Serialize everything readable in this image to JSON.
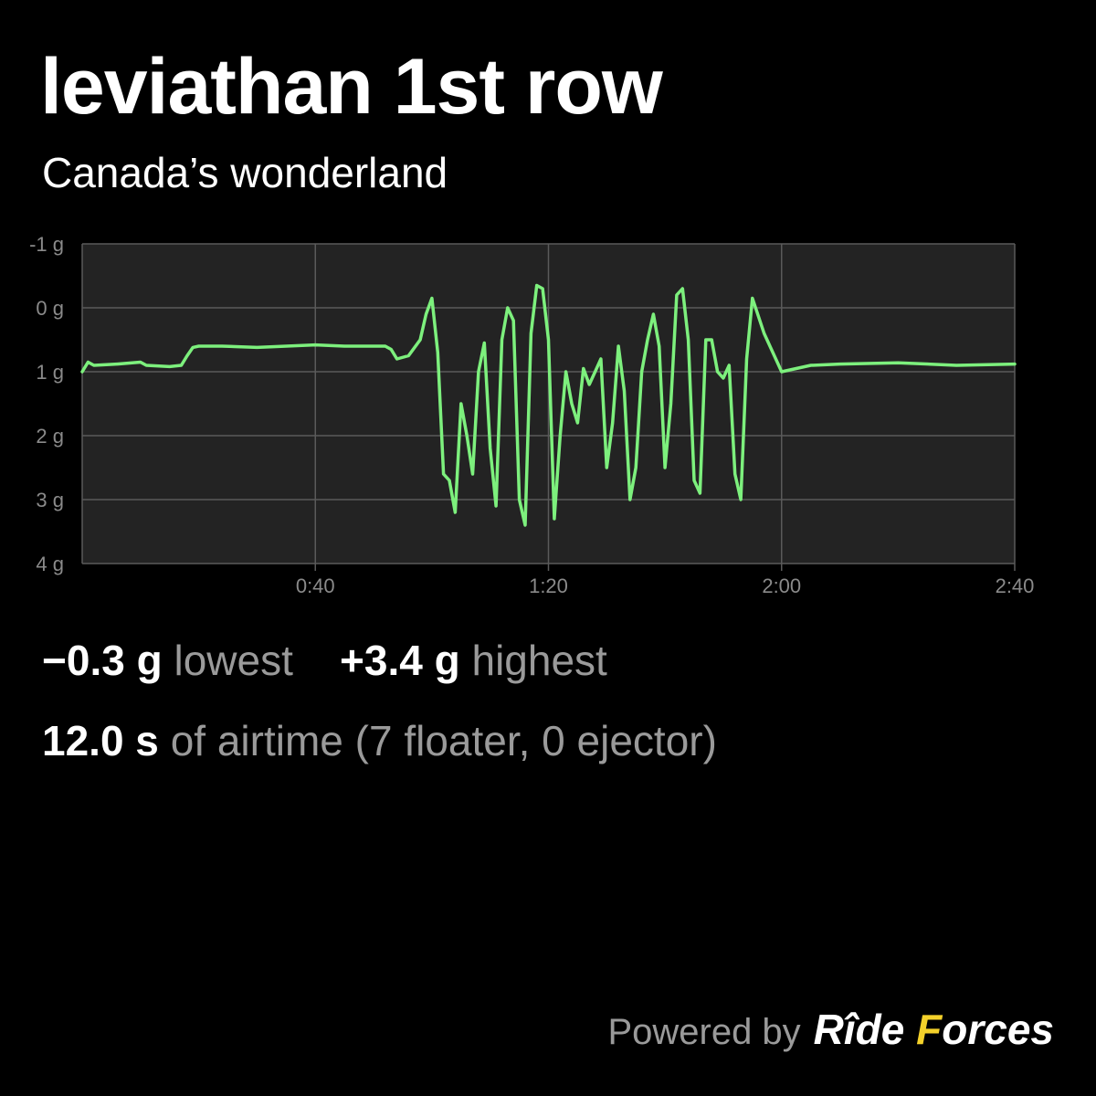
{
  "header": {
    "title": "leviathan 1st row",
    "subtitle": "Canada’s wonderland"
  },
  "stats": {
    "lowest_value": "−0.3 g",
    "lowest_label": "lowest",
    "highest_value": "+3.4 g",
    "highest_label": "highest",
    "airtime_value": "12.0 s",
    "airtime_label": "of airtime (7 floater, 0 ejector)"
  },
  "footer": {
    "powered_label": "Powered by",
    "brand_part1": "Rîde",
    "brand_part2_initial": "F",
    "brand_part2_rest": "orces"
  },
  "colors": {
    "background": "#000000",
    "plot_background": "#232323",
    "grid": "#5a5a5a",
    "line": "#7df07d",
    "muted_text": "#9a9a9a",
    "brand_accent": "#f4d12a"
  },
  "chart_data": {
    "type": "line",
    "title": "",
    "xlabel": "",
    "ylabel": "",
    "x_unit": "seconds",
    "xlim": [
      0,
      160
    ],
    "ylim": [
      -1,
      4
    ],
    "y_inverted": true,
    "grid": true,
    "y_ticks": [
      -1,
      0,
      1,
      2,
      3,
      4
    ],
    "y_tick_labels": [
      "-1 g",
      "0 g",
      "1 g",
      "2 g",
      "3 g",
      "4 g"
    ],
    "x_ticks": [
      40,
      80,
      120,
      160
    ],
    "x_tick_labels": [
      "0:40",
      "1:20",
      "2:00",
      "2:40"
    ],
    "series": [
      {
        "x": [
          0,
          1,
          2,
          6,
          10,
          11,
          15,
          17,
          18,
          19,
          20,
          24,
          30,
          35,
          40,
          45,
          50,
          52,
          53,
          54,
          56,
          58,
          59,
          60,
          61,
          62,
          63,
          64,
          65,
          66,
          67,
          68,
          69,
          70,
          71,
          72,
          73,
          74,
          75,
          76,
          77,
          78,
          79,
          80,
          81,
          82,
          83,
          84,
          85,
          86,
          87,
          88,
          89,
          90,
          91,
          92,
          93,
          94,
          95,
          96,
          97,
          98,
          99,
          100,
          101,
          102,
          103,
          104,
          105,
          106,
          107,
          108,
          109,
          110,
          111,
          112,
          113,
          114,
          115,
          117,
          120,
          125,
          130,
          140,
          150,
          160
        ],
        "y": [
          1.0,
          0.85,
          0.9,
          0.88,
          0.85,
          0.9,
          0.92,
          0.9,
          0.75,
          0.62,
          0.6,
          0.6,
          0.62,
          0.6,
          0.58,
          0.6,
          0.6,
          0.6,
          0.65,
          0.8,
          0.75,
          0.5,
          0.1,
          -0.15,
          0.7,
          2.6,
          2.7,
          3.2,
          1.5,
          2.0,
          2.6,
          1.0,
          0.55,
          2.2,
          3.1,
          0.5,
          0.0,
          0.2,
          3.0,
          3.4,
          0.4,
          -0.35,
          -0.3,
          0.5,
          3.3,
          2.0,
          1.0,
          1.5,
          1.8,
          0.95,
          1.2,
          1.0,
          0.8,
          2.5,
          1.8,
          0.6,
          1.3,
          3.0,
          2.5,
          1.0,
          0.5,
          0.1,
          0.6,
          2.5,
          1.5,
          -0.2,
          -0.3,
          0.5,
          2.7,
          2.9,
          0.5,
          0.5,
          1.0,
          1.1,
          0.9,
          2.6,
          3.0,
          0.8,
          -0.15,
          0.4,
          1.0,
          0.9,
          0.88,
          0.86,
          0.9,
          0.88
        ]
      }
    ]
  }
}
